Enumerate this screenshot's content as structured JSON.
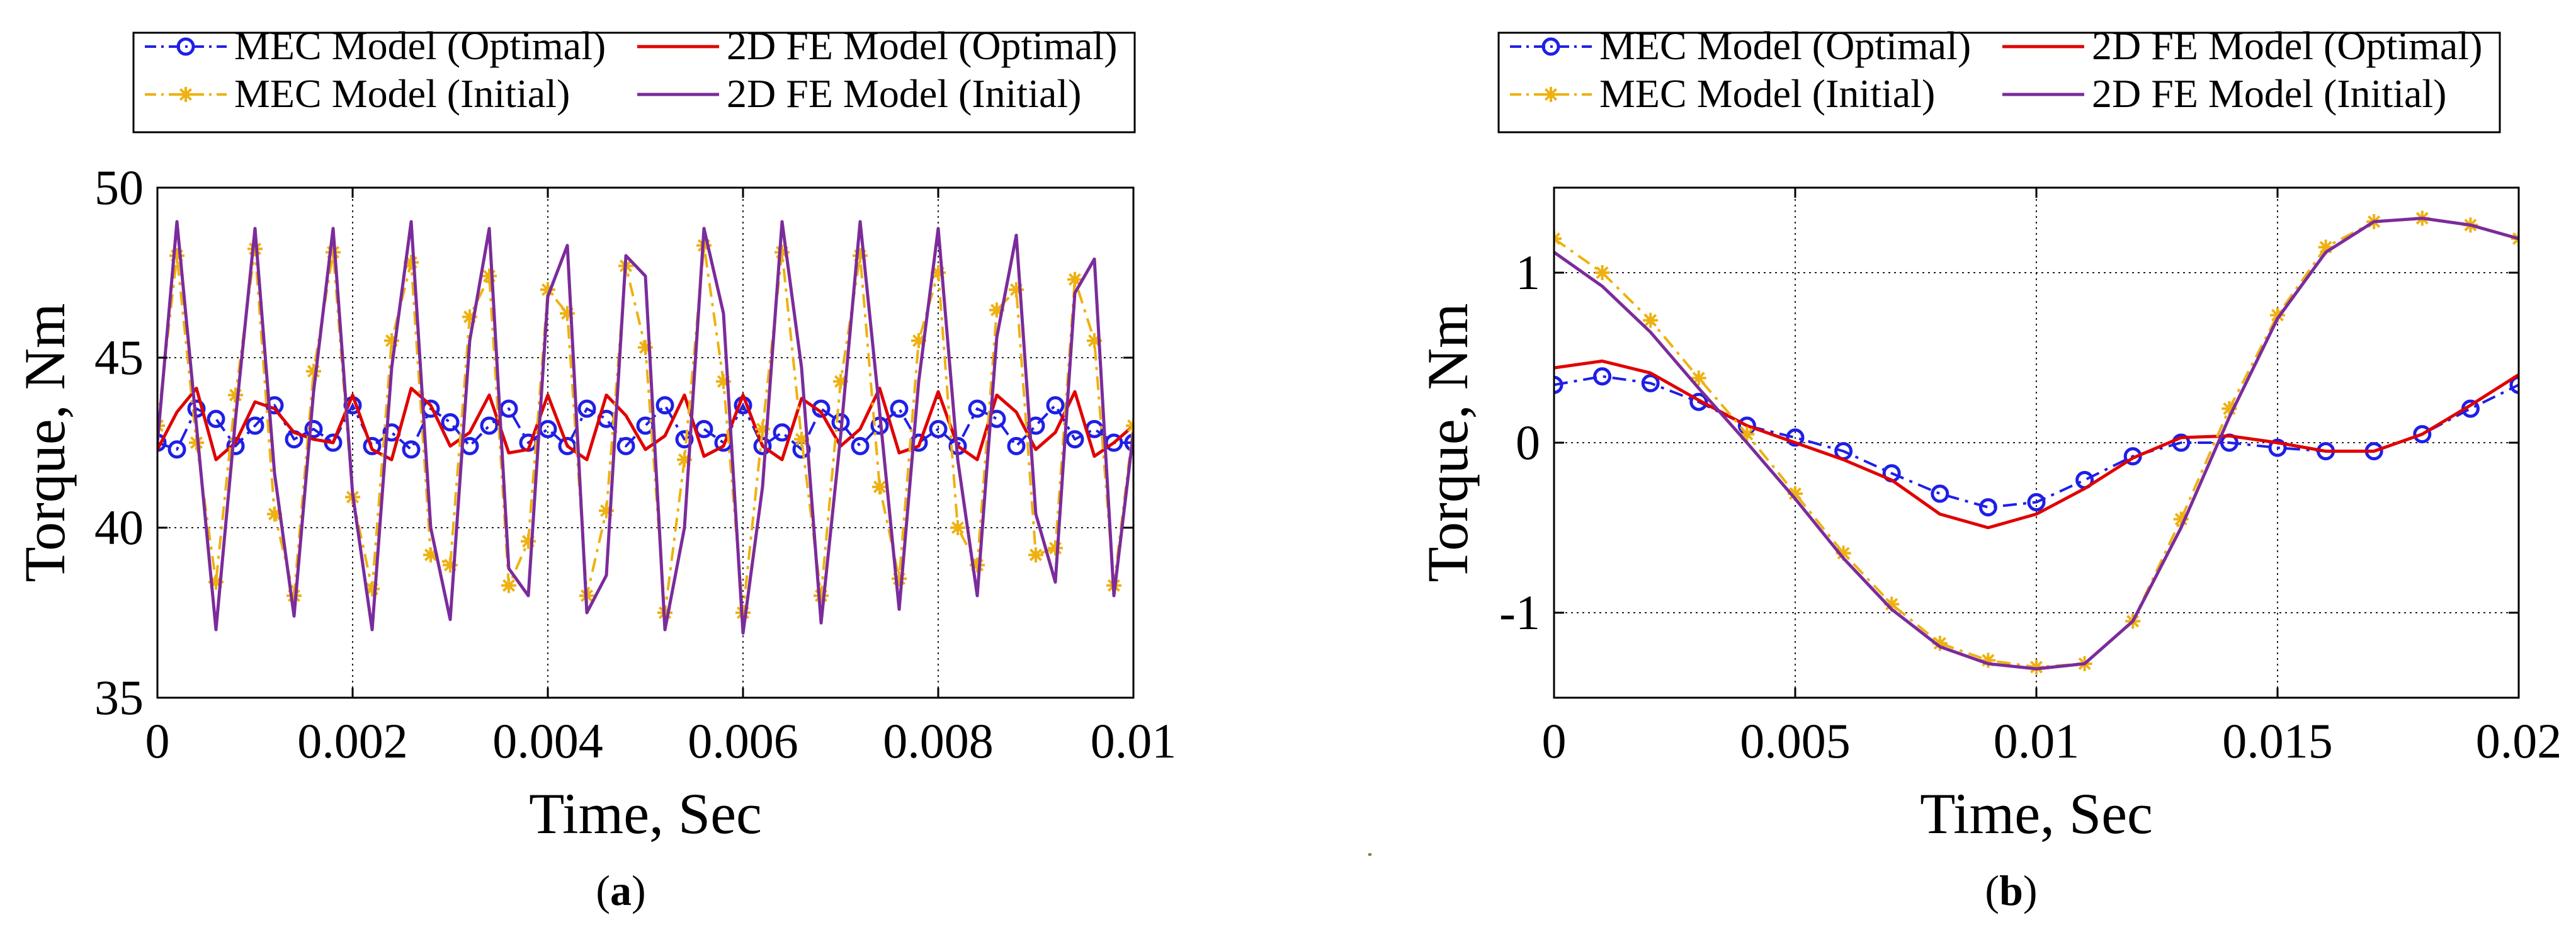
{
  "chart_data": [
    {
      "panel": "(a)",
      "type": "line",
      "xlabel": "Time, Sec",
      "ylabel": "Torque, Nm",
      "xlim": [
        0,
        0.01
      ],
      "ylim": [
        35,
        50
      ],
      "xticks": [
        0,
        0.002,
        0.004,
        0.006,
        0.008,
        0.01
      ],
      "xtick_labels": [
        "0",
        "0.002",
        "0.004",
        "0.006",
        "0.008",
        "0.01"
      ],
      "yticks": [
        35,
        40,
        45,
        50
      ],
      "ytick_labels": [
        "35",
        "40",
        "45",
        "50"
      ],
      "grid": true,
      "legend": {
        "placement": "top",
        "entries": [
          "MEC Model (Optimal)",
          "2D FE Model (Optimal)",
          "MEC Model (Initial)",
          "2D FE Model (Initial)"
        ]
      },
      "series": [
        {
          "name": "MEC Model (Optimal)",
          "color": "#1f1fe6",
          "style": "dash-dot",
          "marker": "circle",
          "x": [
            0,
            0.0002,
            0.0004,
            0.0006,
            0.0008,
            0.001,
            0.0012,
            0.0014,
            0.0016,
            0.0018,
            0.002,
            0.0022,
            0.0024,
            0.0026,
            0.0028,
            0.003,
            0.0032,
            0.0034,
            0.0036,
            0.0038,
            0.004,
            0.0042,
            0.0044,
            0.0046,
            0.0048,
            0.005,
            0.0052,
            0.0054,
            0.0056,
            0.0058,
            0.006,
            0.0062,
            0.0064,
            0.0066,
            0.0068,
            0.007,
            0.0072,
            0.0074,
            0.0076,
            0.0078,
            0.008,
            0.0082,
            0.0084,
            0.0086,
            0.0088,
            0.009,
            0.0092,
            0.0094,
            0.0096,
            0.0098,
            0.01
          ],
          "y": [
            42.5,
            42.3,
            43.5,
            43.2,
            42.4,
            43.0,
            43.6,
            42.6,
            42.9,
            42.5,
            43.6,
            42.4,
            42.8,
            42.3,
            43.5,
            43.1,
            42.4,
            43.0,
            43.5,
            42.5,
            42.9,
            42.4,
            43.5,
            43.2,
            42.4,
            43.0,
            43.6,
            42.6,
            42.9,
            42.5,
            43.6,
            42.4,
            42.8,
            42.3,
            43.5,
            43.1,
            42.4,
            43.0,
            43.5,
            42.5,
            42.9,
            42.4,
            43.5,
            43.2,
            42.4,
            43.0,
            43.6,
            42.6,
            42.9,
            42.5,
            42.5
          ]
        },
        {
          "name": "2D FE Model (Optimal)",
          "color": "#e00000",
          "style": "solid",
          "marker": "none",
          "x": [
            0,
            0.0002,
            0.0004,
            0.0006,
            0.0008,
            0.001,
            0.0012,
            0.0014,
            0.0016,
            0.0018,
            0.002,
            0.0022,
            0.0024,
            0.0026,
            0.0028,
            0.003,
            0.0032,
            0.0034,
            0.0036,
            0.0038,
            0.004,
            0.0042,
            0.0044,
            0.0046,
            0.0048,
            0.005,
            0.0052,
            0.0054,
            0.0056,
            0.0058,
            0.006,
            0.0062,
            0.0064,
            0.0066,
            0.0068,
            0.007,
            0.0072,
            0.0074,
            0.0076,
            0.0078,
            0.008,
            0.0082,
            0.0084,
            0.0086,
            0.0088,
            0.009,
            0.0092,
            0.0094,
            0.0096,
            0.0098,
            0.01
          ],
          "y": [
            42.3,
            43.4,
            44.1,
            42.0,
            42.5,
            43.7,
            43.5,
            42.8,
            42.6,
            42.5,
            43.9,
            42.3,
            42.0,
            44.1,
            43.6,
            42.4,
            42.8,
            43.9,
            42.2,
            42.3,
            43.9,
            42.4,
            42.0,
            43.9,
            43.3,
            42.3,
            42.7,
            43.9,
            42.1,
            42.4,
            43.9,
            42.4,
            42.0,
            43.8,
            43.4,
            42.4,
            42.9,
            44.1,
            42.2,
            42.4,
            44.0,
            42.4,
            42.0,
            43.9,
            43.4,
            42.3,
            42.8,
            44.0,
            42.1,
            42.5,
            43.0
          ]
        },
        {
          "name": "MEC Model (Initial)",
          "color": "#eeb111",
          "style": "dash-dot",
          "marker": "asterisk",
          "x": [
            0,
            0.0002,
            0.0004,
            0.0006,
            0.0008,
            0.001,
            0.0012,
            0.0014,
            0.0016,
            0.0018,
            0.002,
            0.0022,
            0.0024,
            0.0026,
            0.0028,
            0.003,
            0.0032,
            0.0034,
            0.0036,
            0.0038,
            0.004,
            0.0042,
            0.0044,
            0.0046,
            0.0048,
            0.005,
            0.0052,
            0.0054,
            0.0056,
            0.0058,
            0.006,
            0.0062,
            0.0064,
            0.0066,
            0.0068,
            0.007,
            0.0072,
            0.0074,
            0.0076,
            0.0078,
            0.008,
            0.0082,
            0.0084,
            0.0086,
            0.0088,
            0.009,
            0.0092,
            0.0094,
            0.0096,
            0.0098,
            0.01
          ],
          "y": [
            43.0,
            48.0,
            42.5,
            38.4,
            43.9,
            48.2,
            40.4,
            38.0,
            44.6,
            48.1,
            40.9,
            38.2,
            45.5,
            47.8,
            39.2,
            38.9,
            46.2,
            47.4,
            38.3,
            39.6,
            47.0,
            46.3,
            38.0,
            40.5,
            47.7,
            45.3,
            37.5,
            42.0,
            48.3,
            44.3,
            37.5,
            42.9,
            48.1,
            42.6,
            38.0,
            44.3,
            48.0,
            41.2,
            38.5,
            45.5,
            47.5,
            40.0,
            38.9,
            46.4,
            47.0,
            39.2,
            39.4,
            47.3,
            45.5,
            38.3,
            43.0
          ]
        },
        {
          "name": "2D FE Model (Initial)",
          "color": "#7b2b9b",
          "style": "solid",
          "marker": "none",
          "x": [
            0,
            0.0002,
            0.0004,
            0.0006,
            0.0008,
            0.001,
            0.0012,
            0.0014,
            0.0016,
            0.0018,
            0.002,
            0.0022,
            0.0024,
            0.0026,
            0.0028,
            0.003,
            0.0032,
            0.0034,
            0.0036,
            0.0038,
            0.004,
            0.0042,
            0.0044,
            0.0046,
            0.0048,
            0.005,
            0.0052,
            0.0054,
            0.0056,
            0.0058,
            0.006,
            0.0062,
            0.0064,
            0.0066,
            0.0068,
            0.007,
            0.0072,
            0.0074,
            0.0076,
            0.0078,
            0.008,
            0.0082,
            0.0084,
            0.0086,
            0.0088,
            0.009,
            0.0092,
            0.0094,
            0.0096,
            0.0098,
            0.01
          ],
          "y": [
            42.5,
            49.0,
            43.0,
            37.0,
            43.2,
            48.8,
            41.6,
            37.4,
            44.0,
            48.8,
            41.0,
            37.0,
            44.7,
            49.0,
            40.0,
            37.3,
            45.5,
            48.8,
            38.8,
            38.0,
            46.8,
            48.3,
            37.5,
            38.6,
            48.0,
            47.4,
            37.0,
            40.0,
            48.8,
            46.3,
            36.9,
            41.2,
            49.0,
            44.7,
            37.2,
            42.7,
            49.0,
            43.4,
            37.6,
            44.3,
            48.8,
            42.0,
            38.0,
            45.6,
            48.6,
            40.4,
            38.4,
            46.9,
            47.9,
            38.0,
            42.8
          ]
        }
      ]
    },
    {
      "panel": "(b)",
      "type": "line",
      "xlabel": "Time, Sec",
      "ylabel": "Torque, Nm",
      "xlim": [
        0,
        0.02
      ],
      "ylim": [
        -1.5,
        1.5
      ],
      "xticks": [
        0,
        0.005,
        0.01,
        0.015,
        0.02
      ],
      "xtick_labels": [
        "0",
        "0.005",
        "0.01",
        "0.015",
        "0.02"
      ],
      "yticks": [
        -1,
        0,
        1
      ],
      "ytick_labels": [
        "-1",
        "0",
        "1"
      ],
      "grid": true,
      "legend": {
        "placement": "top",
        "entries": [
          "MEC Model (Optimal)",
          "2D FE Model (Optimal)",
          "MEC Model (Initial)",
          "2D FE Model (Initial)"
        ]
      },
      "series": [
        {
          "name": "MEC Model (Optimal)",
          "color": "#1f1fe6",
          "style": "dash-dot",
          "marker": "circle",
          "x": [
            0,
            0.001,
            0.002,
            0.003,
            0.004,
            0.005,
            0.006,
            0.007,
            0.008,
            0.009,
            0.01,
            0.011,
            0.012,
            0.013,
            0.014,
            0.015,
            0.016,
            0.017,
            0.018,
            0.019,
            0.02
          ],
          "y": [
            0.34,
            0.39,
            0.35,
            0.24,
            0.1,
            0.03,
            -0.05,
            -0.18,
            -0.3,
            -0.38,
            -0.35,
            -0.22,
            -0.08,
            0.0,
            0.0,
            -0.03,
            -0.05,
            -0.05,
            0.05,
            0.2,
            0.34
          ]
        },
        {
          "name": "2D FE Model (Optimal)",
          "color": "#e00000",
          "style": "solid",
          "marker": "none",
          "x": [
            0,
            0.001,
            0.002,
            0.003,
            0.004,
            0.005,
            0.006,
            0.007,
            0.008,
            0.009,
            0.01,
            0.011,
            0.012,
            0.013,
            0.014,
            0.015,
            0.016,
            0.017,
            0.018,
            0.019,
            0.02
          ],
          "y": [
            0.44,
            0.48,
            0.41,
            0.25,
            0.1,
            0.0,
            -0.1,
            -0.22,
            -0.42,
            -0.5,
            -0.42,
            -0.27,
            -0.09,
            0.03,
            0.04,
            0.0,
            -0.05,
            -0.05,
            0.05,
            0.22,
            0.4
          ]
        },
        {
          "name": "MEC Model (Initial)",
          "color": "#eeb111",
          "style": "dash-dot",
          "marker": "asterisk",
          "x": [
            0,
            0.001,
            0.002,
            0.003,
            0.004,
            0.005,
            0.006,
            0.007,
            0.008,
            0.009,
            0.01,
            0.011,
            0.012,
            0.013,
            0.014,
            0.015,
            0.016,
            0.017,
            0.018,
            0.019,
            0.02
          ],
          "y": [
            1.2,
            1.0,
            0.72,
            0.38,
            0.05,
            -0.3,
            -0.65,
            -0.95,
            -1.18,
            -1.28,
            -1.32,
            -1.3,
            -1.05,
            -0.45,
            0.2,
            0.75,
            1.15,
            1.3,
            1.32,
            1.28,
            1.2
          ]
        },
        {
          "name": "2D FE Model (Initial)",
          "color": "#7b2b9b",
          "style": "solid",
          "marker": "none",
          "x": [
            0,
            0.001,
            0.002,
            0.003,
            0.004,
            0.005,
            0.006,
            0.007,
            0.008,
            0.009,
            0.01,
            0.011,
            0.012,
            0.013,
            0.014,
            0.015,
            0.016,
            0.017,
            0.018,
            0.019,
            0.02
          ],
          "y": [
            1.12,
            0.92,
            0.65,
            0.32,
            0.0,
            -0.33,
            -0.68,
            -0.98,
            -1.2,
            -1.3,
            -1.33,
            -1.3,
            -1.05,
            -0.5,
            0.15,
            0.73,
            1.12,
            1.3,
            1.32,
            1.28,
            1.2
          ]
        }
      ]
    }
  ],
  "captions": [
    "(a)",
    "(b)"
  ]
}
